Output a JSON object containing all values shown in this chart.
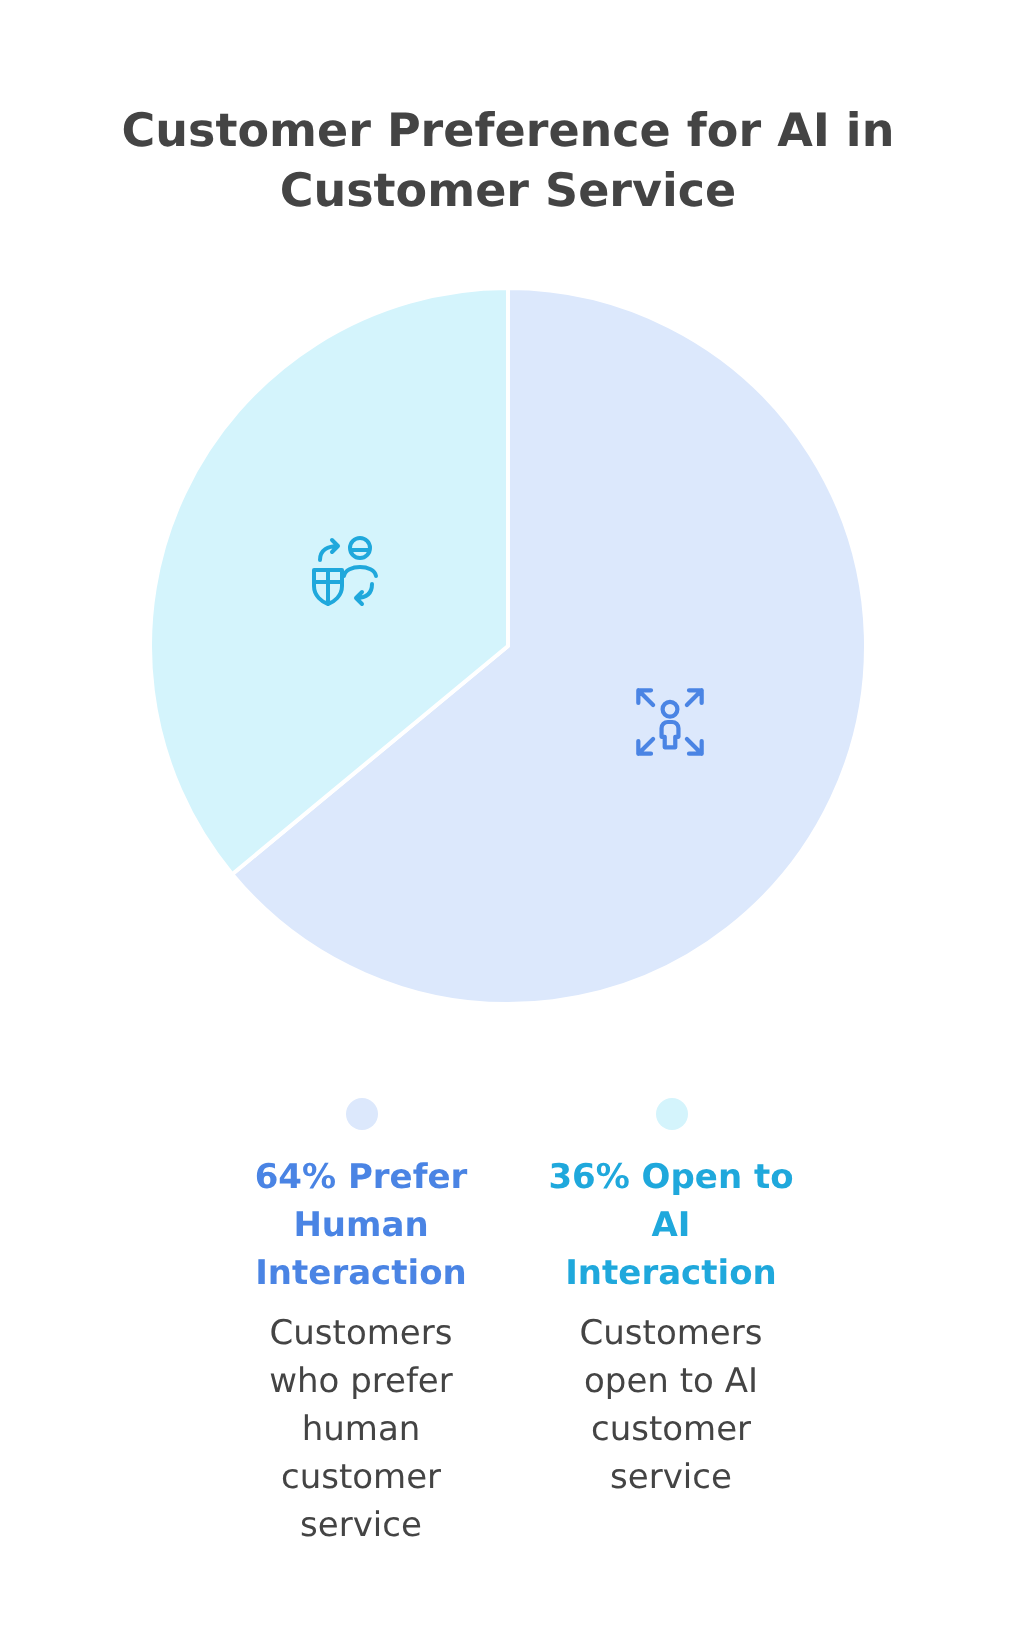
{
  "chart_data": {
    "type": "pie",
    "title": "Customer Preference for AI in Customer Service",
    "categories": [
      "64% Prefer Human Interaction",
      "36% Open to AI Interaction"
    ],
    "values": [
      64,
      36
    ],
    "colors": [
      "#dce8fc",
      "#d4f4fc"
    ],
    "legend": "bottom",
    "annotations": [
      "Customers who prefer human customer service",
      "Customers open to AI customer service"
    ]
  }
}
